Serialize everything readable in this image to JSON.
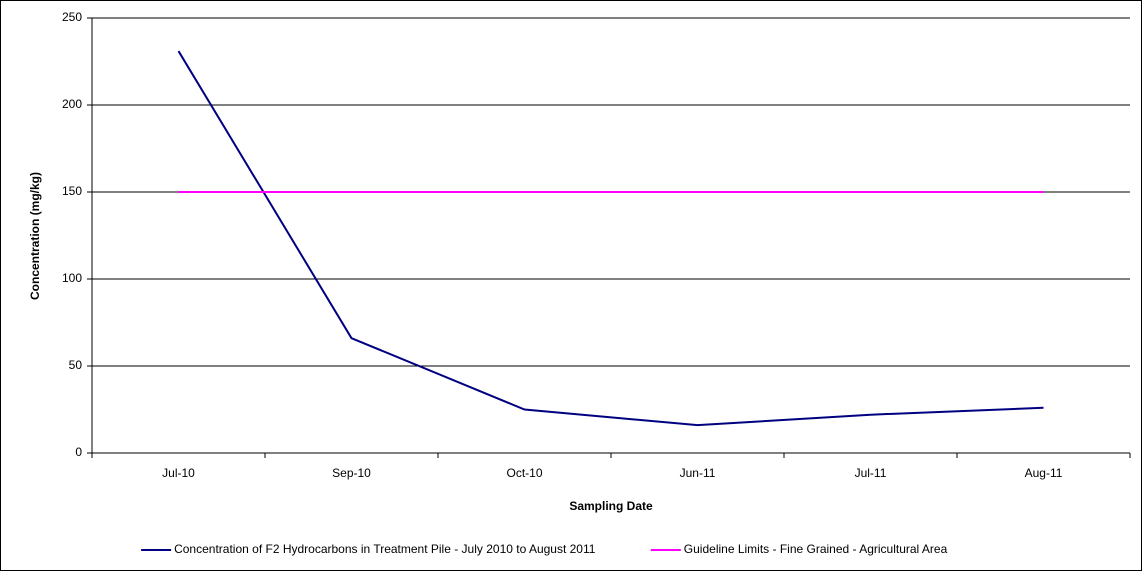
{
  "chart_data": {
    "type": "line",
    "x_label": "Sampling Date",
    "y_label": "Concentration (mg/kg)",
    "categories": [
      "Jul-10",
      "Sep-10",
      "Oct-10",
      "Jun-11",
      "Jul-11",
      "Aug-11"
    ],
    "series": [
      {
        "name": "Concentration of F2 Hydrocarbons in Treatment Pile - July 2010 to August 2011",
        "color": "#000080",
        "values": [
          231,
          66,
          25,
          16,
          22,
          26
        ]
      },
      {
        "name": "Guideline Limits - Fine Grained - Agricultural Area",
        "color": "#ff00ff",
        "values": [
          150,
          150,
          150,
          150,
          150,
          150
        ]
      }
    ],
    "ylim": [
      0,
      250
    ],
    "yticks": [
      0,
      50,
      100,
      150,
      200,
      250
    ],
    "grid": true,
    "legend": "bottom"
  }
}
